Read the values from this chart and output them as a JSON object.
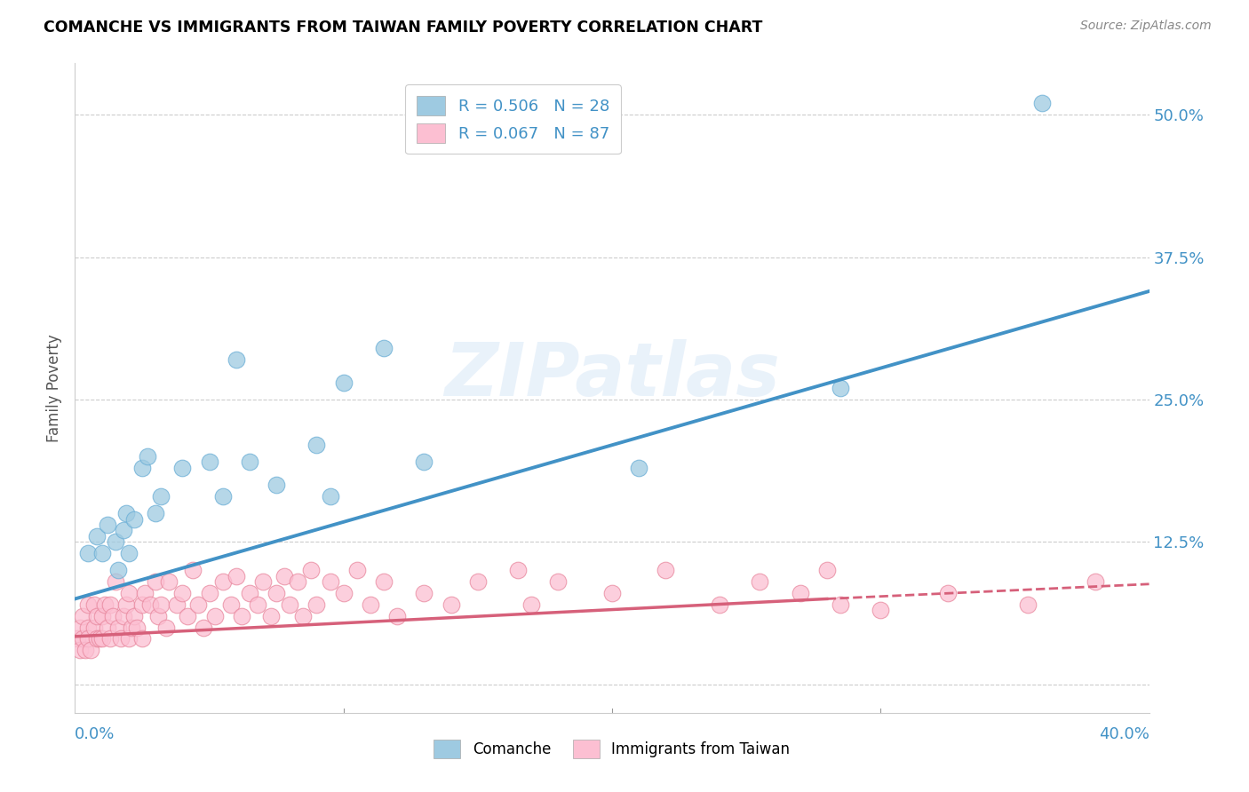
{
  "title": "COMANCHE VS IMMIGRANTS FROM TAIWAN FAMILY POVERTY CORRELATION CHART",
  "source": "Source: ZipAtlas.com",
  "ylabel": "Family Poverty",
  "yticks": [
    0.0,
    0.125,
    0.25,
    0.375,
    0.5
  ],
  "ytick_labels": [
    "",
    "12.5%",
    "25.0%",
    "37.5%",
    "50.0%"
  ],
  "xlim": [
    0.0,
    0.4
  ],
  "ylim": [
    -0.025,
    0.545
  ],
  "watermark": "ZIPatlas",
  "legend1_label": "R = 0.506   N = 28",
  "legend2_label": "R = 0.067   N = 87",
  "blue_color": "#9ecae1",
  "pink_color": "#fcbfd2",
  "blue_line_color": "#4292c6",
  "pink_line_color": "#d6607a",
  "blue_line_x0": 0.0,
  "blue_line_y0": 0.075,
  "blue_line_x1": 0.4,
  "blue_line_y1": 0.345,
  "pink_line_x0": 0.0,
  "pink_line_y0": 0.042,
  "pink_line_x1_solid": 0.28,
  "pink_line_y1_solid": 0.075,
  "pink_line_x1_dash": 0.4,
  "pink_line_y1_dash": 0.088,
  "comanche_x": [
    0.005,
    0.008,
    0.01,
    0.012,
    0.015,
    0.016,
    0.018,
    0.019,
    0.02,
    0.022,
    0.025,
    0.027,
    0.03,
    0.032,
    0.04,
    0.05,
    0.055,
    0.06,
    0.065,
    0.075,
    0.09,
    0.095,
    0.1,
    0.115,
    0.13,
    0.21,
    0.285,
    0.36
  ],
  "comanche_y": [
    0.115,
    0.13,
    0.115,
    0.14,
    0.125,
    0.1,
    0.135,
    0.15,
    0.115,
    0.145,
    0.19,
    0.2,
    0.15,
    0.165,
    0.19,
    0.195,
    0.165,
    0.285,
    0.195,
    0.175,
    0.21,
    0.165,
    0.265,
    0.295,
    0.195,
    0.19,
    0.26,
    0.51
  ],
  "taiwan_x": [
    0.001,
    0.002,
    0.002,
    0.003,
    0.003,
    0.004,
    0.005,
    0.005,
    0.005,
    0.006,
    0.007,
    0.007,
    0.008,
    0.008,
    0.009,
    0.01,
    0.01,
    0.011,
    0.012,
    0.013,
    0.013,
    0.014,
    0.015,
    0.016,
    0.017,
    0.018,
    0.019,
    0.02,
    0.02,
    0.021,
    0.022,
    0.023,
    0.025,
    0.025,
    0.026,
    0.028,
    0.03,
    0.031,
    0.032,
    0.034,
    0.035,
    0.038,
    0.04,
    0.042,
    0.044,
    0.046,
    0.048,
    0.05,
    0.052,
    0.055,
    0.058,
    0.06,
    0.062,
    0.065,
    0.068,
    0.07,
    0.073,
    0.075,
    0.078,
    0.08,
    0.083,
    0.085,
    0.088,
    0.09,
    0.095,
    0.1,
    0.105,
    0.11,
    0.115,
    0.12,
    0.13,
    0.14,
    0.15,
    0.165,
    0.17,
    0.18,
    0.2,
    0.22,
    0.24,
    0.255,
    0.27,
    0.28,
    0.285,
    0.3,
    0.325,
    0.355,
    0.38
  ],
  "taiwan_y": [
    0.04,
    0.03,
    0.05,
    0.04,
    0.06,
    0.03,
    0.05,
    0.04,
    0.07,
    0.03,
    0.05,
    0.07,
    0.04,
    0.06,
    0.04,
    0.06,
    0.04,
    0.07,
    0.05,
    0.07,
    0.04,
    0.06,
    0.09,
    0.05,
    0.04,
    0.06,
    0.07,
    0.04,
    0.08,
    0.05,
    0.06,
    0.05,
    0.07,
    0.04,
    0.08,
    0.07,
    0.09,
    0.06,
    0.07,
    0.05,
    0.09,
    0.07,
    0.08,
    0.06,
    0.1,
    0.07,
    0.05,
    0.08,
    0.06,
    0.09,
    0.07,
    0.095,
    0.06,
    0.08,
    0.07,
    0.09,
    0.06,
    0.08,
    0.095,
    0.07,
    0.09,
    0.06,
    0.1,
    0.07,
    0.09,
    0.08,
    0.1,
    0.07,
    0.09,
    0.06,
    0.08,
    0.07,
    0.09,
    0.1,
    0.07,
    0.09,
    0.08,
    0.1,
    0.07,
    0.09,
    0.08,
    0.1,
    0.07,
    0.065,
    0.08,
    0.07,
    0.09
  ]
}
